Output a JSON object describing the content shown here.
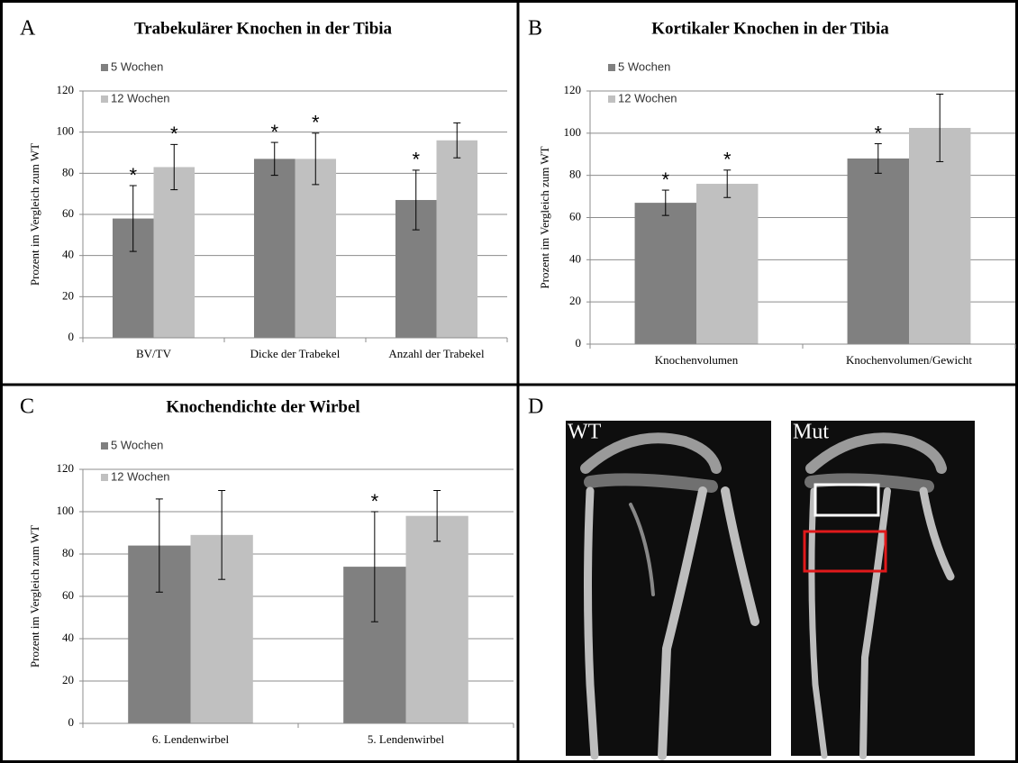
{
  "panel_labels": [
    "A",
    "B",
    "C",
    "D"
  ],
  "image_panel": {
    "labels": [
      "WT",
      "Mut"
    ]
  },
  "chart_data": [
    {
      "type": "bar",
      "title": "Trabekulärer Knochen in der Tibia",
      "y_label": "Prozent im Vergleich zum WT",
      "categories": [
        "BV/TV",
        "Dicke der Trabekel",
        "Anzahl der Trabekel"
      ],
      "series": [
        {
          "name": "5 Wochen",
          "color": "#808080",
          "values": [
            58,
            87,
            67
          ],
          "errors": [
            16,
            8,
            14.5
          ],
          "significance": [
            "*",
            "*",
            "*"
          ]
        },
        {
          "name": "12 Wochen",
          "color": "#c0c0c0",
          "values": [
            83,
            87,
            96
          ],
          "errors": [
            11,
            12.5,
            8.5
          ],
          "significance": [
            "*",
            "*",
            null
          ]
        }
      ],
      "ylim": [
        0,
        120
      ],
      "yticks": [
        0,
        20,
        40,
        60,
        80,
        100,
        120
      ],
      "grid": true,
      "legend": "top-left"
    },
    {
      "type": "bar",
      "title": "Kortikaler Knochen in der Tibia",
      "y_label": "Prozent im Vergleich zum WT",
      "categories": [
        "Knochenvolumen",
        "Knochenvolumen/Gewicht"
      ],
      "series": [
        {
          "name": "5 Wochen",
          "color": "#808080",
          "values": [
            67,
            88
          ],
          "errors": [
            6,
            7
          ],
          "significance": [
            "*",
            "*"
          ]
        },
        {
          "name": "12 Wochen",
          "color": "#c0c0c0",
          "values": [
            76,
            102.5
          ],
          "errors": [
            6.5,
            16
          ],
          "significance": [
            "*",
            null
          ]
        }
      ],
      "ylim": [
        0,
        120
      ],
      "yticks": [
        0,
        20,
        40,
        60,
        80,
        100,
        120
      ],
      "grid": true,
      "legend": "top-left"
    },
    {
      "type": "bar",
      "title": "Knochendichte der Wirbel",
      "y_label": "Prozent im Vergleich zum WT",
      "categories": [
        "6. Lendenwirbel",
        "5. Lendenwirbel"
      ],
      "series": [
        {
          "name": "5 Wochen",
          "color": "#808080",
          "values": [
            84,
            74
          ],
          "errors": [
            22,
            26
          ],
          "significance": [
            null,
            "*"
          ]
        },
        {
          "name": "12 Wochen",
          "color": "#c0c0c0",
          "values": [
            89,
            98
          ],
          "errors": [
            21,
            12
          ],
          "significance": [
            null,
            null
          ]
        }
      ],
      "ylim": [
        0,
        120
      ],
      "yticks": [
        0,
        20,
        40,
        60,
        80,
        100,
        120
      ],
      "grid": true,
      "legend": "top-left"
    }
  ]
}
